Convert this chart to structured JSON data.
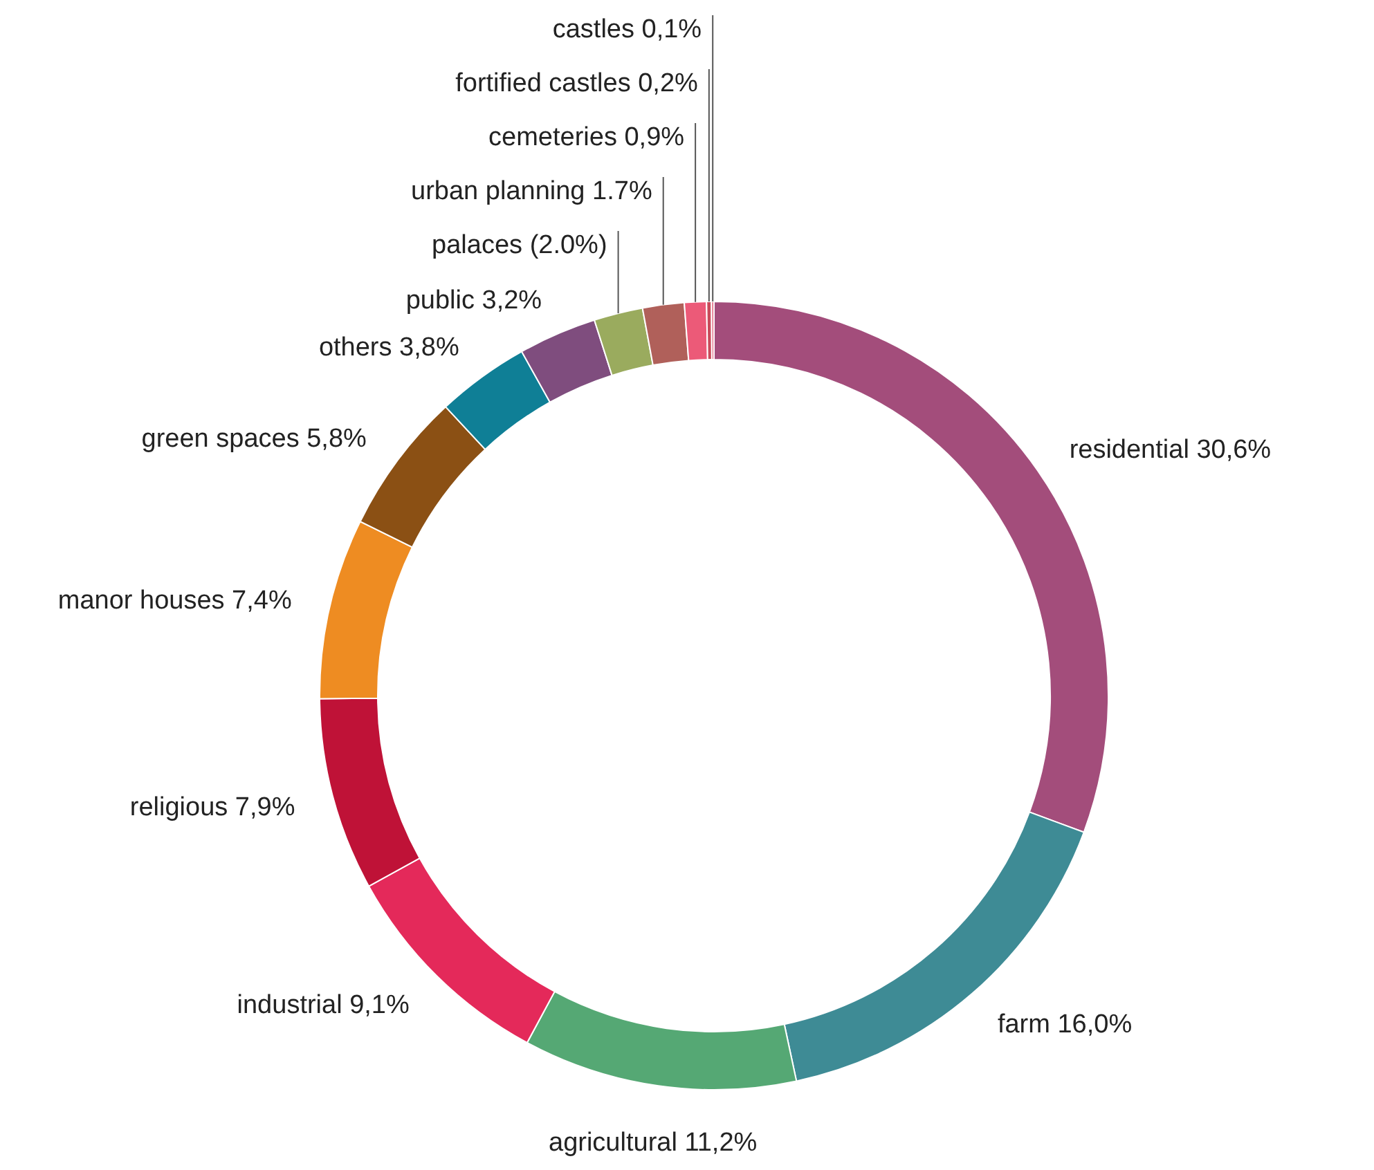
{
  "chart_data": {
    "type": "donut",
    "categories": [
      "residential",
      "farm",
      "agricultural",
      "industrial",
      "religious",
      "manor houses",
      "green spaces",
      "others",
      "public",
      "palaces",
      "urban planning",
      "cemeteries",
      "fortified castles",
      "castles"
    ],
    "values": [
      30.6,
      16.0,
      11.2,
      9.1,
      7.9,
      7.4,
      5.8,
      3.8,
      3.2,
      2.0,
      1.7,
      0.9,
      0.2,
      0.1
    ],
    "value_labels": [
      "30,6%",
      "16,0%",
      "11,2%",
      "9,1%",
      "7,9%",
      "7,4%",
      "5,8%",
      "3,8%",
      "3,2%",
      "(2.0%)",
      "1.7%",
      "0,9%",
      "0,2%",
      "0,1%"
    ],
    "colors": [
      "#a34d7b",
      "#3e8b95",
      "#55a874",
      "#e4295a",
      "#bf1237",
      "#ee8c22",
      "#8b5014",
      "#0f7f96",
      "#7f4d7e",
      "#9aab5e",
      "#b0605a",
      "#ec5a78",
      "#c84a5a",
      "#e0607a"
    ]
  }
}
